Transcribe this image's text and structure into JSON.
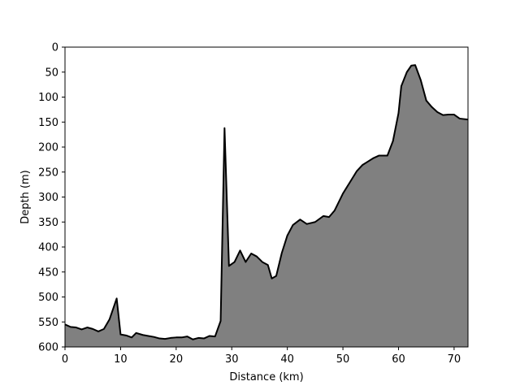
{
  "chart_data": {
    "type": "area",
    "title": "",
    "xlabel": "Distance (km)",
    "ylabel": "Depth (m)",
    "xlim": [
      0,
      72.5
    ],
    "ylim": [
      600,
      0
    ],
    "y_inverted": true,
    "grid": false,
    "fill_color": "#808080",
    "line_color": "#000000",
    "x_ticks": [
      0,
      10,
      20,
      30,
      40,
      50,
      60,
      70
    ],
    "y_ticks": [
      0,
      50,
      100,
      150,
      200,
      250,
      300,
      350,
      400,
      450,
      500,
      550,
      600
    ],
    "x_tick_labels": [
      "0",
      "10",
      "20",
      "30",
      "40",
      "50",
      "60",
      "70"
    ],
    "y_tick_labels": [
      "0",
      "50",
      "100",
      "150",
      "200",
      "250",
      "300",
      "350",
      "400",
      "450",
      "500",
      "550",
      "600"
    ],
    "series": [
      {
        "x": [
          0,
          1,
          2,
          3,
          4,
          5,
          6,
          7,
          8,
          9.3,
          10,
          11,
          12,
          12.8,
          14,
          15,
          16,
          17,
          18,
          19,
          20,
          21,
          22,
          23,
          24,
          25,
          26,
          27,
          28,
          28.7,
          29.5,
          30.5,
          31.5,
          32.5,
          33.5,
          34.5,
          35.5,
          36.5,
          37.2,
          38,
          39,
          40,
          41,
          42.3,
          43.5,
          45,
          46.5,
          47.5,
          48.5,
          50,
          51.5,
          52.5,
          53.5,
          54.5,
          55.5,
          56.5,
          58,
          59,
          60,
          60.5,
          61.5,
          62.3,
          63,
          64,
          65,
          66,
          67,
          68,
          69,
          70,
          71,
          72.5
        ],
        "y": [
          555,
          560,
          561,
          565,
          561,
          564,
          569,
          564,
          545,
          503,
          575,
          577,
          581,
          572,
          576,
          578,
          580,
          583,
          584,
          582,
          581,
          581,
          579,
          585,
          582,
          583,
          578,
          579,
          548,
          162,
          438,
          430,
          407,
          430,
          413,
          419,
          430,
          436,
          463,
          458,
          412,
          377,
          356,
          345,
          354,
          350,
          338,
          340,
          327,
          293,
          266,
          248,
          236,
          229,
          222,
          217,
          217,
          188,
          132,
          78,
          50,
          37,
          36,
          66,
          107,
          120,
          130,
          136,
          135,
          135,
          143,
          145
        ]
      }
    ]
  }
}
